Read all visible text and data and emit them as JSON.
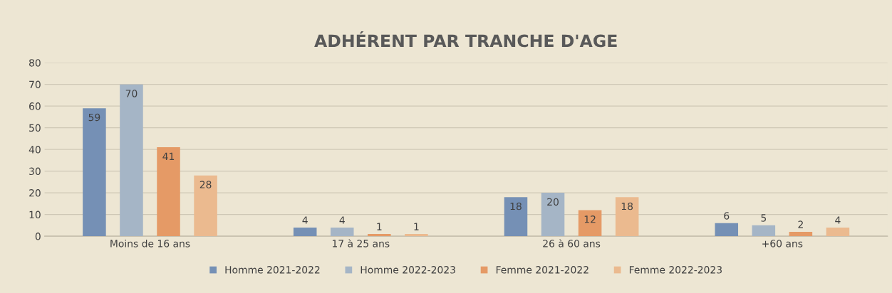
{
  "chart_data": {
    "type": "bar",
    "title": "ADHÉRENT PAR TRANCHE D'AGE",
    "categories": [
      "Moins de 16 ans",
      "17 à 25 ans",
      "26 à 60 ans",
      "+60 ans"
    ],
    "series": [
      {
        "name": "Homme 2021-2022",
        "color": "#7590b5",
        "values": [
          59,
          4,
          18,
          6
        ]
      },
      {
        "name": "Homme 2022-2023",
        "color": "#a5b5c6",
        "values": [
          70,
          4,
          20,
          5
        ]
      },
      {
        "name": "Femme 2021-2022",
        "color": "#e59a66",
        "values": [
          41,
          1,
          12,
          2
        ]
      },
      {
        "name": "Femme 2022-2023",
        "color": "#ebba8f",
        "values": [
          28,
          1,
          18,
          4
        ]
      }
    ],
    "ylim": [
      0,
      80
    ],
    "yticks": [
      0,
      10,
      20,
      30,
      40,
      50,
      60,
      70,
      80
    ],
    "grid": "y",
    "legend": "bottom",
    "data_labels": true
  }
}
